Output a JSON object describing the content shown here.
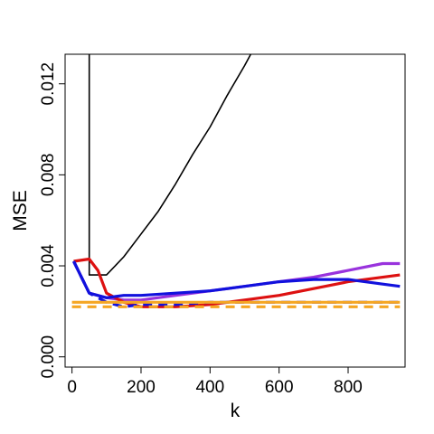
{
  "chart_data": {
    "type": "line",
    "xlabel": "k",
    "ylabel": "MSE",
    "xlim": [
      -20,
      965
    ],
    "ylim": [
      -0.00045,
      0.0133
    ],
    "x_ticks": [
      0,
      200,
      400,
      600,
      800
    ],
    "x_tick_labels": [
      "0",
      "200",
      "400",
      "600",
      "800"
    ],
    "y_ticks": [
      0.0,
      0.004,
      0.008,
      0.012
    ],
    "y_tick_labels": [
      "0.000",
      "0.004",
      "0.008",
      "0.012"
    ],
    "grid": false,
    "legend": "none",
    "series": [
      {
        "color": "#000000",
        "width": 1.6,
        "dash": "",
        "x": [
          50,
          50,
          50,
          100,
          100,
          150,
          200,
          250,
          300,
          350,
          400,
          450,
          500,
          525
        ],
        "y": [
          0.0135,
          0.0036,
          0.0036,
          0.0036,
          0.0036,
          0.0044,
          0.0054,
          0.0064,
          0.0076,
          0.0089,
          0.0101,
          0.0115,
          0.0128,
          0.0135
        ]
      },
      {
        "color": "#9933dd",
        "width": 3.2,
        "dash": "",
        "x": [
          5,
          50,
          100,
          150,
          200,
          300,
          400,
          500,
          600,
          700,
          800,
          900,
          950
        ],
        "y": [
          0.0042,
          0.0028,
          0.0026,
          0.0025,
          0.0025,
          0.0027,
          0.0029,
          0.0031,
          0.0033,
          0.0035,
          0.0038,
          0.0041,
          0.0041
        ]
      },
      {
        "color": "#dd1111",
        "width": 3.2,
        "dash": "",
        "x": [
          5,
          50,
          75,
          100,
          150,
          200,
          300,
          400,
          500,
          600,
          700,
          800,
          900,
          950
        ],
        "y": [
          0.0042,
          0.0043,
          0.0038,
          0.0028,
          0.0024,
          0.0022,
          0.0022,
          0.0023,
          0.0025,
          0.0027,
          0.003,
          0.0033,
          0.0035,
          0.0036
        ]
      },
      {
        "color": "#1111dd",
        "width": 3.2,
        "dash": "",
        "x": [
          5,
          50,
          100,
          150,
          200,
          300,
          400,
          500,
          600,
          700,
          800,
          900,
          950
        ],
        "y": [
          0.0042,
          0.0028,
          0.0026,
          0.0027,
          0.0027,
          0.0028,
          0.0029,
          0.0031,
          0.0033,
          0.0034,
          0.0034,
          0.0032,
          0.0031
        ]
      },
      {
        "color": "#1111dd",
        "width": 3.2,
        "dash": "10 7",
        "x": [
          5,
          50,
          100,
          150,
          200,
          300,
          400,
          500,
          600,
          700,
          800,
          900,
          950
        ],
        "y": [
          0.0042,
          0.0028,
          0.0024,
          0.0022,
          0.0023,
          0.0023,
          0.0024,
          0.0024,
          0.0024,
          0.0024,
          0.0024,
          0.0024,
          0.0024
        ]
      },
      {
        "color": "#f5a623",
        "width": 3.2,
        "dash": "",
        "x": [
          0,
          950
        ],
        "y": [
          0.0024,
          0.0024
        ]
      },
      {
        "color": "#f5a623",
        "width": 3.2,
        "dash": "10 7",
        "x": [
          0,
          950
        ],
        "y": [
          0.0022,
          0.0022
        ]
      }
    ]
  }
}
